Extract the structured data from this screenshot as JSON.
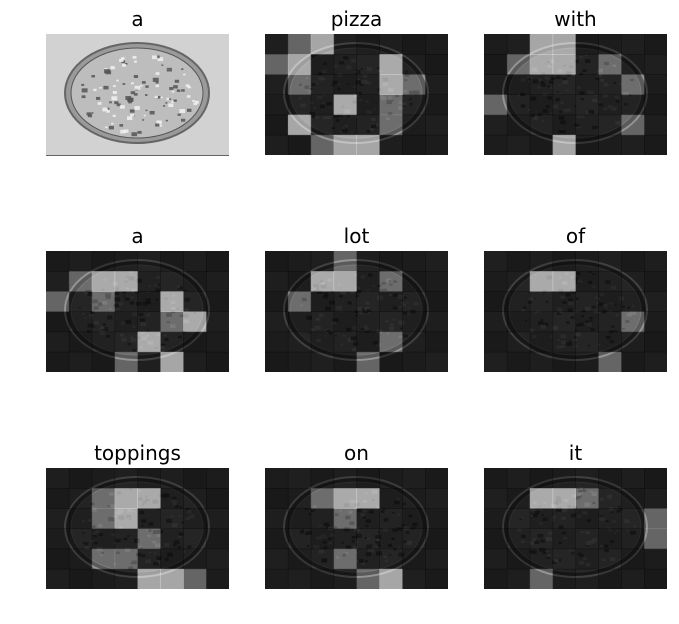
{
  "figure": {
    "panels": [
      {
        "word": "a",
        "kind": "original"
      },
      {
        "word": "pizza",
        "kind": "attention",
        "bright": [
          [
            0,
            2
          ],
          [
            1,
            1
          ],
          [
            1,
            5
          ],
          [
            2,
            5
          ],
          [
            3,
            3
          ],
          [
            4,
            1
          ],
          [
            5,
            3
          ],
          [
            5,
            4
          ]
        ],
        "mid": [
          [
            0,
            1
          ],
          [
            1,
            0
          ],
          [
            2,
            1
          ],
          [
            2,
            6
          ],
          [
            3,
            5
          ],
          [
            4,
            5
          ],
          [
            5,
            2
          ]
        ]
      },
      {
        "word": "with",
        "kind": "attention",
        "bright": [
          [
            0,
            2
          ],
          [
            0,
            3
          ],
          [
            1,
            2
          ],
          [
            1,
            3
          ],
          [
            5,
            3
          ]
        ],
        "mid": [
          [
            1,
            1
          ],
          [
            1,
            5
          ],
          [
            2,
            6
          ],
          [
            3,
            0
          ],
          [
            4,
            6
          ]
        ]
      },
      {
        "word": "a",
        "kind": "attention",
        "bright": [
          [
            1,
            2
          ],
          [
            1,
            3
          ],
          [
            2,
            5
          ],
          [
            3,
            6
          ],
          [
            4,
            4
          ],
          [
            5,
            5
          ]
        ],
        "mid": [
          [
            1,
            1
          ],
          [
            2,
            0
          ],
          [
            2,
            2
          ],
          [
            3,
            5
          ],
          [
            5,
            3
          ]
        ]
      },
      {
        "word": "lot",
        "kind": "attention",
        "bright": [
          [
            1,
            2
          ],
          [
            1,
            3
          ]
        ],
        "mid": [
          [
            0,
            3
          ],
          [
            1,
            5
          ],
          [
            2,
            1
          ],
          [
            4,
            5
          ],
          [
            5,
            4
          ]
        ]
      },
      {
        "word": "of",
        "kind": "attention",
        "bright": [
          [
            1,
            2
          ],
          [
            1,
            3
          ]
        ],
        "mid": [
          [
            3,
            6
          ],
          [
            5,
            5
          ]
        ]
      },
      {
        "word": "toppings",
        "kind": "attention",
        "bright": [
          [
            1,
            3
          ],
          [
            1,
            4
          ],
          [
            2,
            3
          ],
          [
            5,
            4
          ],
          [
            5,
            5
          ]
        ],
        "mid": [
          [
            1,
            2
          ],
          [
            2,
            2
          ],
          [
            3,
            4
          ],
          [
            4,
            2
          ],
          [
            4,
            3
          ],
          [
            5,
            6
          ]
        ]
      },
      {
        "word": "on",
        "kind": "attention",
        "bright": [
          [
            1,
            3
          ],
          [
            1,
            4
          ],
          [
            5,
            5
          ]
        ],
        "mid": [
          [
            1,
            2
          ],
          [
            2,
            3
          ],
          [
            4,
            3
          ],
          [
            5,
            4
          ]
        ]
      },
      {
        "word": "it",
        "kind": "attention",
        "bright": [
          [
            1,
            2
          ],
          [
            1,
            3
          ]
        ],
        "mid": [
          [
            1,
            4
          ],
          [
            2,
            7
          ],
          [
            3,
            7
          ],
          [
            5,
            2
          ]
        ]
      }
    ]
  }
}
